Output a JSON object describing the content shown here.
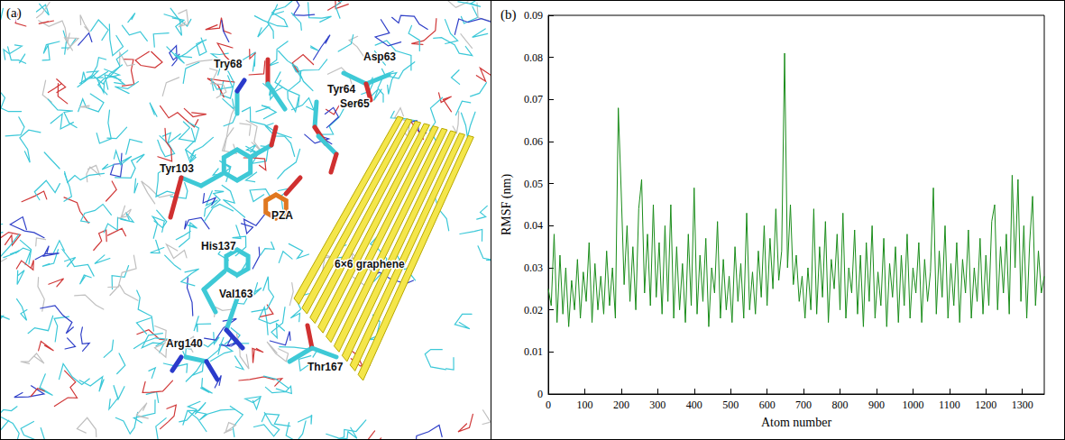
{
  "image_panel": {
    "label": "(a)",
    "labels": [
      "Try68",
      "Asp63",
      "Tyr64",
      "Ser65",
      "Tyr103",
      "PZA",
      "His137",
      "6×6 graphene",
      "Val163",
      "Arg140",
      "Thr167"
    ]
  },
  "chart_data": {
    "type": "line",
    "annotations": [
      "(b)"
    ],
    "x_label": "Atom number",
    "y_label": "RMSF (nm)",
    "color": "#1a8c1a",
    "grid": false,
    "xlim": [
      0,
      1360
    ],
    "xticks": [
      0,
      100,
      200,
      300,
      400,
      500,
      600,
      700,
      800,
      900,
      1000,
      1100,
      1200,
      1300
    ],
    "ylim": [
      0,
      0.09
    ],
    "yticks": [
      0,
      0.01,
      0.02,
      0.03,
      0.04,
      0.05,
      0.06,
      0.07,
      0.08,
      0.09
    ],
    "x": [
      0,
      8,
      16,
      24,
      32,
      40,
      48,
      56,
      64,
      72,
      80,
      88,
      96,
      104,
      112,
      120,
      128,
      136,
      144,
      152,
      160,
      168,
      176,
      184,
      192,
      200,
      208,
      216,
      224,
      232,
      240,
      248,
      256,
      264,
      272,
      280,
      288,
      296,
      304,
      312,
      320,
      328,
      336,
      344,
      352,
      360,
      368,
      376,
      384,
      392,
      400,
      408,
      416,
      424,
      432,
      440,
      448,
      456,
      464,
      472,
      480,
      488,
      496,
      504,
      512,
      520,
      528,
      536,
      544,
      552,
      560,
      568,
      576,
      584,
      592,
      600,
      608,
      616,
      624,
      632,
      640,
      648,
      656,
      664,
      672,
      680,
      688,
      696,
      704,
      712,
      720,
      728,
      736,
      744,
      752,
      760,
      768,
      776,
      784,
      792,
      800,
      808,
      816,
      824,
      832,
      840,
      848,
      856,
      864,
      872,
      880,
      888,
      896,
      904,
      912,
      920,
      928,
      936,
      944,
      952,
      960,
      968,
      976,
      984,
      992,
      1000,
      1008,
      1016,
      1024,
      1032,
      1040,
      1048,
      1056,
      1064,
      1072,
      1080,
      1088,
      1096,
      1104,
      1112,
      1120,
      1128,
      1136,
      1144,
      1152,
      1160,
      1168,
      1176,
      1184,
      1192,
      1200,
      1208,
      1216,
      1224,
      1232,
      1240,
      1248,
      1256,
      1264,
      1272,
      1280,
      1288,
      1296,
      1304,
      1312,
      1320,
      1328,
      1336,
      1344,
      1352,
      1360
    ],
    "values": [
      0.025,
      0.021,
      0.038,
      0.017,
      0.033,
      0.019,
      0.03,
      0.016,
      0.027,
      0.02,
      0.032,
      0.018,
      0.029,
      0.022,
      0.036,
      0.017,
      0.031,
      0.02,
      0.028,
      0.019,
      0.034,
      0.021,
      0.03,
      0.018,
      0.068,
      0.048,
      0.026,
      0.04,
      0.022,
      0.035,
      0.02,
      0.044,
      0.051,
      0.024,
      0.038,
      0.021,
      0.045,
      0.023,
      0.036,
      0.019,
      0.04,
      0.022,
      0.045,
      0.018,
      0.035,
      0.02,
      0.031,
      0.017,
      0.038,
      0.021,
      0.049,
      0.019,
      0.033,
      0.022,
      0.037,
      0.016,
      0.03,
      0.024,
      0.041,
      0.018,
      0.032,
      0.02,
      0.028,
      0.017,
      0.035,
      0.022,
      0.031,
      0.018,
      0.043,
      0.02,
      0.029,
      0.019,
      0.034,
      0.023,
      0.04,
      0.021,
      0.037,
      0.025,
      0.044,
      0.027,
      0.034,
      0.081,
      0.03,
      0.045,
      0.026,
      0.033,
      0.022,
      0.028,
      0.018,
      0.03,
      0.02,
      0.044,
      0.019,
      0.035,
      0.023,
      0.041,
      0.017,
      0.032,
      0.025,
      0.038,
      0.02,
      0.043,
      0.018,
      0.03,
      0.024,
      0.039,
      0.019,
      0.033,
      0.016,
      0.036,
      0.022,
      0.04,
      0.018,
      0.029,
      0.021,
      0.037,
      0.016,
      0.031,
      0.023,
      0.035,
      0.017,
      0.033,
      0.021,
      0.038,
      0.018,
      0.03,
      0.024,
      0.036,
      0.017,
      0.032,
      0.022,
      0.029,
      0.049,
      0.019,
      0.034,
      0.023,
      0.04,
      0.018,
      0.031,
      0.021,
      0.036,
      0.017,
      0.032,
      0.024,
      0.039,
      0.018,
      0.03,
      0.022,
      0.037,
      0.019,
      0.033,
      0.021,
      0.041,
      0.045,
      0.02,
      0.035,
      0.024,
      0.038,
      0.019,
      0.052,
      0.03,
      0.051,
      0.022,
      0.04,
      0.018,
      0.036,
      0.047,
      0.021,
      0.034,
      0.024,
      0.028
    ]
  }
}
